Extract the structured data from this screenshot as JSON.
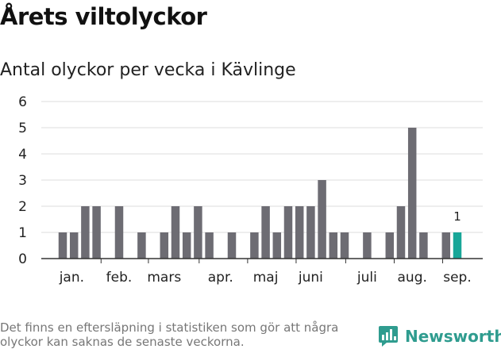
{
  "title": "Årets viltolyckor",
  "subtitle": "Antal olyckor per vecka i Kävlinge",
  "footnote": "Det finns en eftersläpning i statistiken som gör att några olyckor kan saknas de senaste veckorna.",
  "brand": {
    "name": "Newsworthy",
    "logo_icon": "bar-chart-speech-bubble-icon",
    "color": "#2f9c8f"
  },
  "colors": {
    "bar": "#6d6c73",
    "highlight": "#18a698",
    "grid": "#dddddd",
    "axis": "#333333",
    "tick_text": "#222222"
  },
  "chart_data": {
    "type": "bar",
    "weeks": [
      1,
      2,
      3,
      4,
      5,
      6,
      7,
      8,
      9,
      10,
      11,
      12,
      13,
      14,
      15,
      16,
      17,
      18,
      19,
      20,
      21,
      22,
      23,
      24,
      25,
      26,
      27,
      28,
      29,
      30,
      31,
      32,
      33,
      34,
      35,
      36
    ],
    "values": [
      1,
      1,
      2,
      2,
      0,
      2,
      0,
      1,
      0,
      1,
      2,
      1,
      2,
      1,
      0,
      1,
      0,
      1,
      2,
      1,
      2,
      2,
      2,
      3,
      1,
      1,
      0,
      1,
      0,
      1,
      2,
      5,
      1,
      0,
      1,
      1
    ],
    "highlight_index": 35,
    "highlight_label": "1",
    "month_labels": [
      {
        "label": "jan.",
        "week": 1.8
      },
      {
        "label": "feb.",
        "week": 6
      },
      {
        "label": "mars",
        "week": 10
      },
      {
        "label": "apr.",
        "week": 15
      },
      {
        "label": "maj",
        "week": 19
      },
      {
        "label": "juni",
        "week": 23
      },
      {
        "label": "juli",
        "week": 28
      },
      {
        "label": "aug.",
        "week": 32
      },
      {
        "label": "sep.",
        "week": 36
      }
    ],
    "month_ticks": [
      4.4,
      8.6,
      13.1,
      17.4,
      21.7,
      26.1,
      30.4,
      34.7
    ],
    "y_ticks": [
      0,
      1,
      2,
      3,
      4,
      5,
      6
    ],
    "ylim": [
      0,
      6
    ],
    "grid": true
  }
}
